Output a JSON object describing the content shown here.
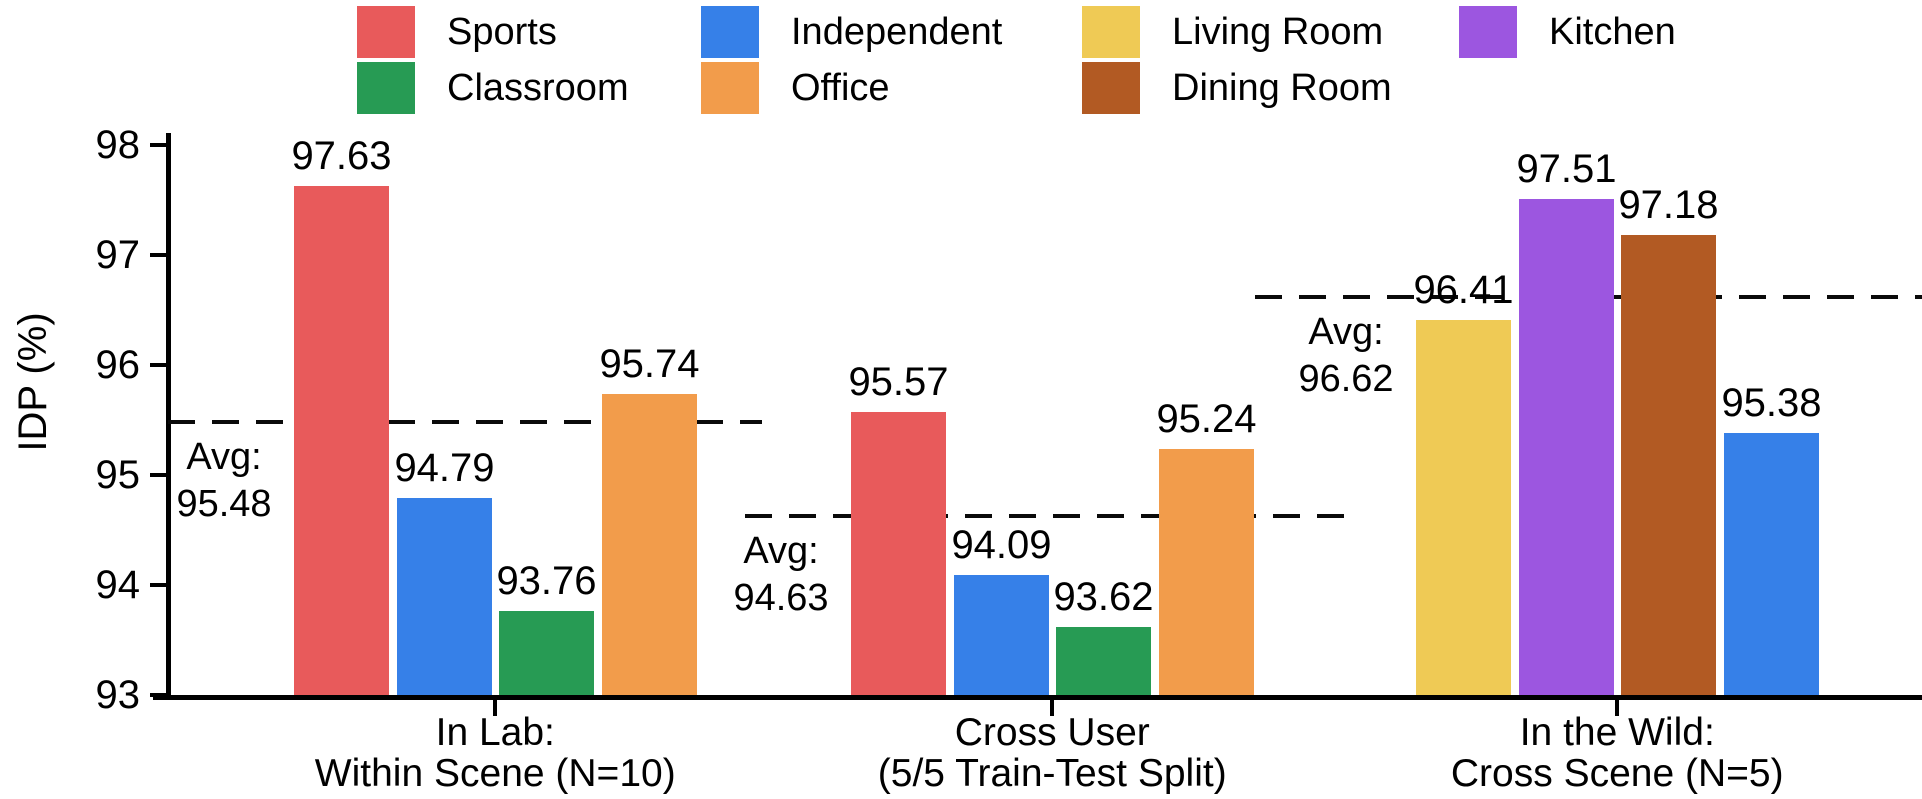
{
  "y_axis": {
    "label": "IDP (%)",
    "ticks": [
      "98",
      "97",
      "96",
      "95",
      "94",
      "93"
    ]
  },
  "legend": {
    "rows": [
      [
        "Sports",
        "Independent",
        "Living Room",
        "Kitchen"
      ],
      [
        "Classroom",
        "Office",
        "Dining Room"
      ]
    ]
  },
  "chart_data": {
    "type": "bar",
    "title": "",
    "xlabel": "",
    "ylabel": "IDP (%)",
    "ylim": [
      93,
      98
    ],
    "grid": false,
    "legend_position": "top",
    "series_colors": {
      "Sports": "#e85a5b",
      "Independent": "#3680e8",
      "Classroom": "#279b54",
      "Office": "#f29c4b",
      "Living Room": "#efca55",
      "Kitchen": "#9c56e0",
      "Dining Room": "#b25a23"
    },
    "groups": [
      {
        "label_lines": [
          "In Lab:",
          "Within Scene (N=10)"
        ],
        "avg_prefix": "Avg:",
        "avg": 95.48,
        "bars": [
          {
            "category": "Sports",
            "value": 97.63
          },
          {
            "category": "Independent",
            "value": 94.79
          },
          {
            "category": "Classroom",
            "value": 93.76
          },
          {
            "category": "Office",
            "value": 95.74
          }
        ]
      },
      {
        "label_lines": [
          "Cross User",
          "(5/5 Train-Test Split)"
        ],
        "avg_prefix": "Avg:",
        "avg": 94.63,
        "bars": [
          {
            "category": "Sports",
            "value": 95.57
          },
          {
            "category": "Independent",
            "value": 94.09
          },
          {
            "category": "Classroom",
            "value": 93.62
          },
          {
            "category": "Office",
            "value": 95.24
          }
        ]
      },
      {
        "label_lines": [
          "In the Wild:",
          "Cross Scene (N=5)"
        ],
        "avg_prefix": "Avg:",
        "avg": 96.62,
        "bars": [
          {
            "category": "Living Room",
            "value": 96.41
          },
          {
            "category": "Kitchen",
            "value": 97.51
          },
          {
            "category": "Dining Room",
            "value": 97.18
          },
          {
            "category": "Independent",
            "value": 95.38
          }
        ]
      }
    ]
  }
}
